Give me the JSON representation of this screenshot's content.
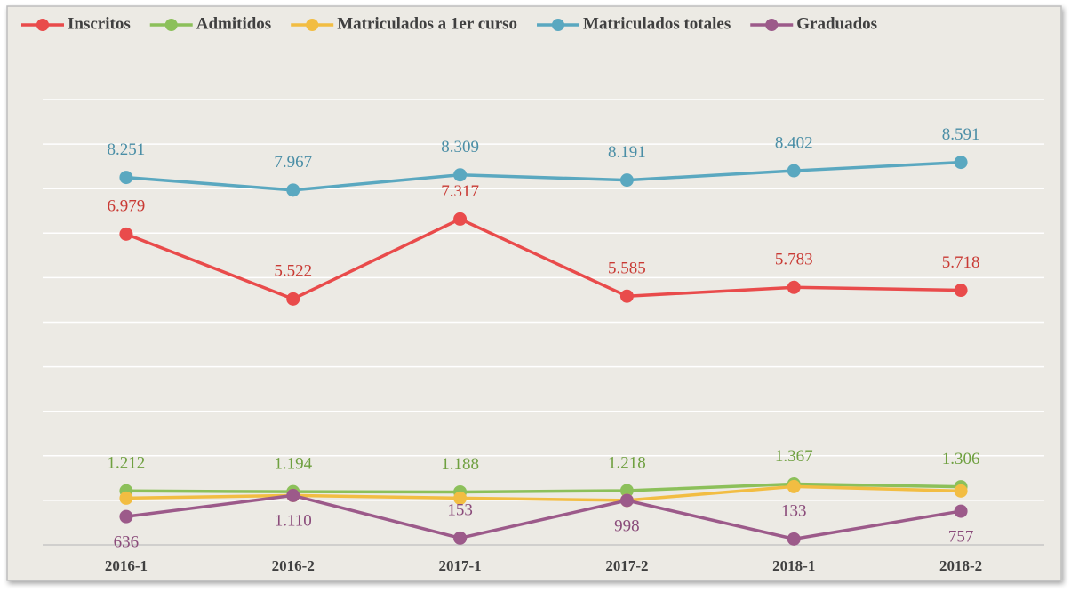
{
  "chart_data": {
    "type": "line",
    "categories": [
      "2016-1",
      "2016-2",
      "2017-1",
      "2017-2",
      "2018-1",
      "2018-2"
    ],
    "series": [
      {
        "name": "Inscritos",
        "color": "#e94b4b",
        "label_color": "#c93a34",
        "values": [
          6979,
          5522,
          7317,
          5585,
          5783,
          5718
        ],
        "value_labels": [
          "6.979",
          "5.522",
          "7.317",
          "5.585",
          "5.783",
          "5.718"
        ]
      },
      {
        "name": "Admitidos",
        "color": "#8cc05a",
        "label_color": "#6fa040",
        "values": [
          1212,
          1194,
          1188,
          1218,
          1367,
          1306
        ],
        "value_labels": [
          "1.212",
          "1.194",
          "1.188",
          "1.218",
          "1.367",
          "1.306"
        ]
      },
      {
        "name": "Matriculados a 1er curso",
        "color": "#f2bd42",
        "values": [
          1050,
          1110,
          1050,
          1000,
          1310,
          1210
        ]
      },
      {
        "name": "Matriculados totales",
        "color": "#5aa8c0",
        "label_color": "#4a8ea6",
        "values": [
          8251,
          7967,
          8309,
          8191,
          8402,
          8591
        ],
        "value_labels": [
          "8.251",
          "7.967",
          "8.309",
          "8.191",
          "8.402",
          "8.591"
        ]
      },
      {
        "name": "Graduados",
        "color": "#9c5a8a",
        "label_color": "#8a4b7a",
        "values": [
          636,
          1110,
          153,
          998,
          133,
          757
        ],
        "value_labels": [
          "636",
          "1.110",
          "153",
          "998",
          "133",
          "757"
        ]
      }
    ],
    "ylim": [
      0,
      10000
    ],
    "yticks": [
      0,
      1000,
      2000,
      3000,
      4000,
      5000,
      6000,
      7000,
      8000,
      9000,
      10000
    ],
    "grid": true,
    "legend": "top"
  }
}
